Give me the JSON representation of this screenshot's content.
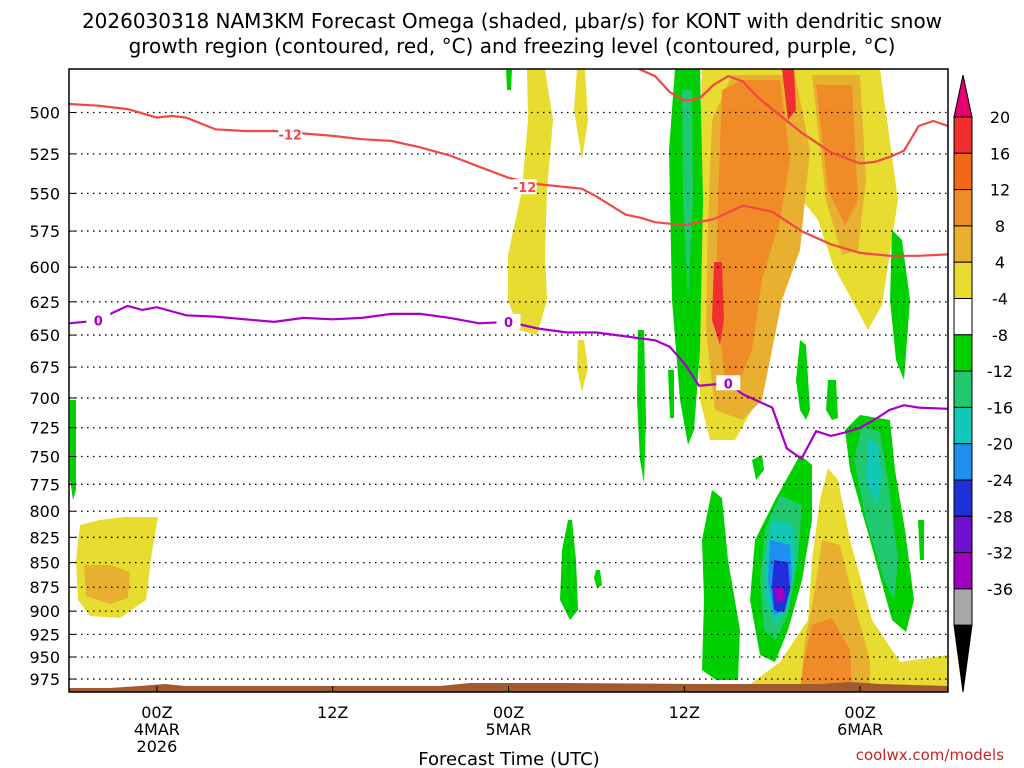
{
  "title_line1": "2026030318 NAM3KM Forecast Omega (shaded, μbar/s) for KONT with dendritic snow",
  "title_line2": "growth region (contoured, red, °C) and freezing level (contoured, purple, °C)",
  "credit": "coolwx.com/models",
  "chart_data": {
    "type": "contour",
    "title": "2026030318 NAM3KM Forecast Omega (shaded, μbar/s) for KONT with dendritic snow growth region (contoured, red, °C) and freezing level (contoured, purple, °C)",
    "xlabel": "Forecast Time (UTC)",
    "ylabel": "",
    "x_range_hours": [
      0,
      60
    ],
    "y_range_hpa": [
      475,
      990
    ],
    "y_scale": "log-pressure",
    "grid": true,
    "y_ticks": [
      500,
      525,
      550,
      575,
      600,
      625,
      650,
      675,
      700,
      725,
      750,
      775,
      800,
      825,
      850,
      875,
      900,
      925,
      950,
      975
    ],
    "x_ticks": [
      {
        "hour": 6,
        "lines": [
          "00Z",
          "4MAR",
          "2026"
        ]
      },
      {
        "hour": 18,
        "lines": [
          "12Z"
        ]
      },
      {
        "hour": 30,
        "lines": [
          "00Z",
          "5MAR"
        ]
      },
      {
        "hour": 42,
        "lines": [
          "12Z"
        ]
      },
      {
        "hour": 54,
        "lines": [
          "00Z",
          "6MAR"
        ]
      }
    ],
    "colorbar": {
      "labels": [
        "20",
        "16",
        "12",
        "8",
        "4",
        "-4",
        "-8",
        "-12",
        "-16",
        "-20",
        "-24",
        "-28",
        "-32",
        "-36"
      ],
      "colors": [
        "#e8006e",
        "#f03030",
        "#f06818",
        "#f08c28",
        "#e8b030",
        "#e8dc30",
        "#ffffff",
        "#00d000",
        "#20c870",
        "#10c8b8",
        "#2090f0",
        "#2030d8",
        "#7010d0",
        "#a000c0",
        "#a8a8a8",
        "#000000"
      ]
    },
    "dendritic_contour": {
      "label": "-12",
      "color": "#f04848",
      "points": [
        [
          0,
          495
        ],
        [
          2,
          496
        ],
        [
          4,
          498
        ],
        [
          6,
          503
        ],
        [
          7,
          502
        ],
        [
          8,
          503
        ],
        [
          10,
          510
        ],
        [
          12,
          511
        ],
        [
          14,
          511
        ],
        [
          18,
          514
        ],
        [
          20,
          516
        ],
        [
          22,
          517
        ],
        [
          24,
          521
        ],
        [
          26,
          526
        ],
        [
          28,
          533
        ],
        [
          30,
          540
        ],
        [
          32,
          544
        ],
        [
          34,
          546
        ],
        [
          35,
          547
        ],
        [
          36,
          552
        ],
        [
          38,
          564
        ],
        [
          39,
          566
        ],
        [
          40,
          569
        ],
        [
          42,
          571
        ],
        [
          44,
          567
        ],
        [
          46,
          558
        ],
        [
          48,
          562
        ],
        [
          50,
          575
        ],
        [
          52,
          584
        ],
        [
          54,
          590
        ],
        [
          56,
          592
        ],
        [
          58,
          592
        ],
        [
          60,
          591
        ]
      ],
      "points_upper": [
        [
          38.9,
          475
        ],
        [
          40,
          479
        ],
        [
          41,
          488
        ],
        [
          42,
          493
        ],
        [
          43,
          492
        ],
        [
          44,
          484
        ],
        [
          45,
          479
        ],
        [
          46,
          482
        ],
        [
          47,
          491
        ],
        [
          48,
          498
        ],
        [
          50,
          512
        ],
        [
          52,
          524
        ],
        [
          54,
          531
        ],
        [
          55,
          530
        ],
        [
          56,
          527
        ],
        [
          57,
          523
        ],
        [
          58,
          508
        ],
        [
          59,
          505
        ],
        [
          60,
          508
        ]
      ]
    },
    "freezing_contour": {
      "label": "0",
      "color": "#a800c8",
      "points": [
        [
          0,
          641
        ],
        [
          2,
          639
        ],
        [
          3,
          633
        ],
        [
          4,
          628
        ],
        [
          5,
          631
        ],
        [
          6,
          629
        ],
        [
          8,
          635
        ],
        [
          10,
          636
        ],
        [
          12,
          638
        ],
        [
          14,
          640
        ],
        [
          16,
          637
        ],
        [
          18,
          638
        ],
        [
          20,
          637
        ],
        [
          22,
          634
        ],
        [
          24,
          634
        ],
        [
          26,
          637
        ],
        [
          28,
          641
        ],
        [
          30,
          640
        ],
        [
          32,
          645
        ],
        [
          34,
          648
        ],
        [
          36,
          648
        ],
        [
          38,
          651
        ],
        [
          40,
          654
        ],
        [
          41,
          659
        ],
        [
          42,
          672
        ],
        [
          43,
          690
        ],
        [
          44,
          689
        ],
        [
          45,
          688
        ],
        [
          46,
          697
        ],
        [
          48,
          708
        ],
        [
          49,
          743
        ],
        [
          50,
          752
        ],
        [
          51,
          728
        ],
        [
          52,
          732
        ],
        [
          53,
          729
        ],
        [
          54,
          725
        ],
        [
          55,
          718
        ],
        [
          56,
          710
        ],
        [
          57,
          706
        ],
        [
          58,
          708
        ],
        [
          60,
          709
        ]
      ]
    }
  }
}
